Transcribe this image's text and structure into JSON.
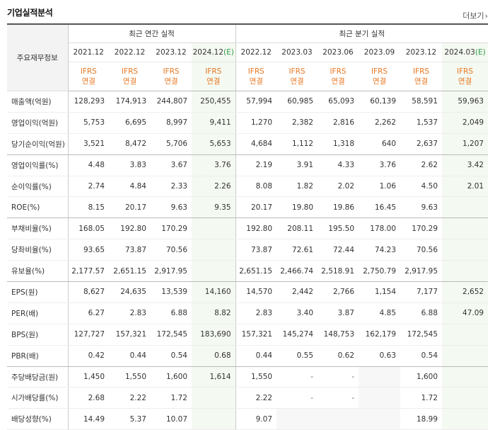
{
  "title": "기업실적분석",
  "more_label": "더보기",
  "header": {
    "label": "주요재무정보",
    "annual_group": "최근 연간 실적",
    "quarter_group": "최근 분기 실적",
    "annual_periods": [
      "2021.12",
      "2022.12",
      "2023.12",
      "2024.12"
    ],
    "annual_estimate_mark": "(E)",
    "quarter_periods": [
      "2022.12",
      "2023.03",
      "2023.06",
      "2023.09",
      "2023.12",
      "2024.03"
    ],
    "quarter_estimate_mark": "(E)",
    "ifrs": "IFRS",
    "consolidated": "연결"
  },
  "rows": [
    {
      "label": "매출액(억원)",
      "annual": [
        "128,293",
        "174,913",
        "244,807",
        "250,455"
      ],
      "quarter": [
        "57,994",
        "60,985",
        "65,093",
        "60,139",
        "58,591",
        "59,963"
      ]
    },
    {
      "label": "영업이익(억원)",
      "annual": [
        "5,753",
        "6,695",
        "8,997",
        "9,411"
      ],
      "quarter": [
        "1,270",
        "2,382",
        "2,816",
        "2,262",
        "1,537",
        "2,049"
      ]
    },
    {
      "label": "당기순이익(억원)",
      "annual": [
        "3,521",
        "8,472",
        "5,706",
        "5,653"
      ],
      "quarter": [
        "4,684",
        "1,112",
        "1,318",
        "640",
        "2,637",
        "1,207"
      ]
    },
    {
      "label": "영업이익률(%)",
      "annual": [
        "4.48",
        "3.83",
        "3.67",
        "3.76"
      ],
      "quarter": [
        "2.19",
        "3.91",
        "4.33",
        "3.76",
        "2.62",
        "3.42"
      ]
    },
    {
      "label": "순이익률(%)",
      "annual": [
        "2.74",
        "4.84",
        "2.33",
        "2.26"
      ],
      "quarter": [
        "8.08",
        "1.82",
        "2.02",
        "1.06",
        "4.50",
        "2.01"
      ]
    },
    {
      "label": "ROE(%)",
      "annual": [
        "8.15",
        "20.17",
        "9.63",
        "9.35"
      ],
      "quarter": [
        "20.17",
        "19.80",
        "19.86",
        "16.45",
        "9.63",
        ""
      ]
    },
    {
      "label": "부채비율(%)",
      "annual": [
        "168.05",
        "192.80",
        "170.29",
        ""
      ],
      "quarter": [
        "192.80",
        "208.11",
        "195.50",
        "178.00",
        "170.29",
        ""
      ]
    },
    {
      "label": "당좌비율(%)",
      "annual": [
        "93.65",
        "73.87",
        "70.56",
        ""
      ],
      "quarter": [
        "73.87",
        "72.61",
        "72.44",
        "74.23",
        "70.56",
        ""
      ]
    },
    {
      "label": "유보율(%)",
      "annual": [
        "2,177.57",
        "2,651.15",
        "2,917.95",
        ""
      ],
      "quarter": [
        "2,651.15",
        "2,466.74",
        "2,518.91",
        "2,750.79",
        "2,917.95",
        ""
      ]
    },
    {
      "label": "EPS(원)",
      "annual": [
        "8,627",
        "24,635",
        "13,539",
        "14,160"
      ],
      "quarter": [
        "14,570",
        "2,442",
        "2,766",
        "1,154",
        "7,177",
        "2,652"
      ]
    },
    {
      "label": "PER(배)",
      "annual": [
        "6.27",
        "2.83",
        "6.88",
        "8.82"
      ],
      "quarter": [
        "2.83",
        "3.40",
        "3.87",
        "4.85",
        "6.88",
        "47.09"
      ]
    },
    {
      "label": "BPS(원)",
      "annual": [
        "127,727",
        "157,321",
        "172,545",
        "183,690"
      ],
      "quarter": [
        "157,321",
        "145,274",
        "148,753",
        "162,179",
        "172,545",
        ""
      ]
    },
    {
      "label": "PBR(배)",
      "annual": [
        "0.42",
        "0.44",
        "0.54",
        "0.68"
      ],
      "quarter": [
        "0.44",
        "0.55",
        "0.62",
        "0.63",
        "0.54",
        ""
      ]
    },
    {
      "label": "주당배당금(원)",
      "annual": [
        "1,450",
        "1,550",
        "1,600",
        "1,614"
      ],
      "quarter": [
        "1,550",
        "-",
        "-",
        "",
        "1,600",
        ""
      ]
    },
    {
      "label": "시가배당률(%)",
      "annual": [
        "2.68",
        "2.22",
        "1.72",
        ""
      ],
      "quarter": [
        "2.22",
        "-",
        "-",
        "",
        "1.72",
        ""
      ]
    },
    {
      "label": "배당성향(%)",
      "annual": [
        "14.49",
        "5.37",
        "10.07",
        ""
      ],
      "quarter": [
        "9.07",
        "",
        "",
        "",
        "18.99",
        ""
      ]
    }
  ]
}
